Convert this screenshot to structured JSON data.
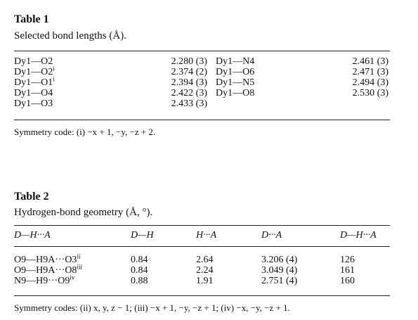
{
  "table1": {
    "title": "Table 1",
    "caption": "Selected bond lengths (Å).",
    "left": [
      {
        "bond": "Dy1—O2",
        "length": "2.280 (3)"
      },
      {
        "bond": "Dy1—O2",
        "sup": "i",
        "length": "2.374 (2)"
      },
      {
        "bond": "Dy1—O1",
        "sup": "i",
        "length": "2.394 (3)"
      },
      {
        "bond": "Dy1—O4",
        "length": "2.422 (3)"
      },
      {
        "bond": "Dy1—O3",
        "length": "2.433 (3)"
      }
    ],
    "right": [
      {
        "bond": "Dy1—N4",
        "length": "2.461 (3)"
      },
      {
        "bond": "Dy1—O6",
        "length": "2.471 (3)"
      },
      {
        "bond": "Dy1—N5",
        "length": "2.494 (3)"
      },
      {
        "bond": "Dy1—O8",
        "length": "2.530 (3)"
      }
    ],
    "footnote": "Symmetry code: (i) −x + 1, −y, −z + 2."
  },
  "table2": {
    "title": "Table 2",
    "caption": "Hydrogen-bond geometry (Å, °).",
    "headers": [
      "D—H···A",
      "D—H",
      "H···A",
      "D···A",
      "D—H···A"
    ],
    "rows": [
      {
        "dha": "O9—H9A···O3",
        "sup": "ii",
        "dh": "0.84",
        "ha": "2.64",
        "da": "3.206 (4)",
        "angle": "126"
      },
      {
        "dha": "O9—H9A···O8",
        "sup": "iii",
        "dh": "0.84",
        "ha": "2.24",
        "da": "3.049 (4)",
        "angle": "161"
      },
      {
        "dha": "N9—H9···O9",
        "sup": "iv",
        "dh": "0.88",
        "ha": "1.91",
        "da": "2.751 (4)",
        "angle": "160"
      }
    ],
    "footnote": "Symmetry codes: (ii) x, y, z − 1; (iii) −x + 1, −y, −z + 1; (iv) −x, −y, −z + 1."
  }
}
